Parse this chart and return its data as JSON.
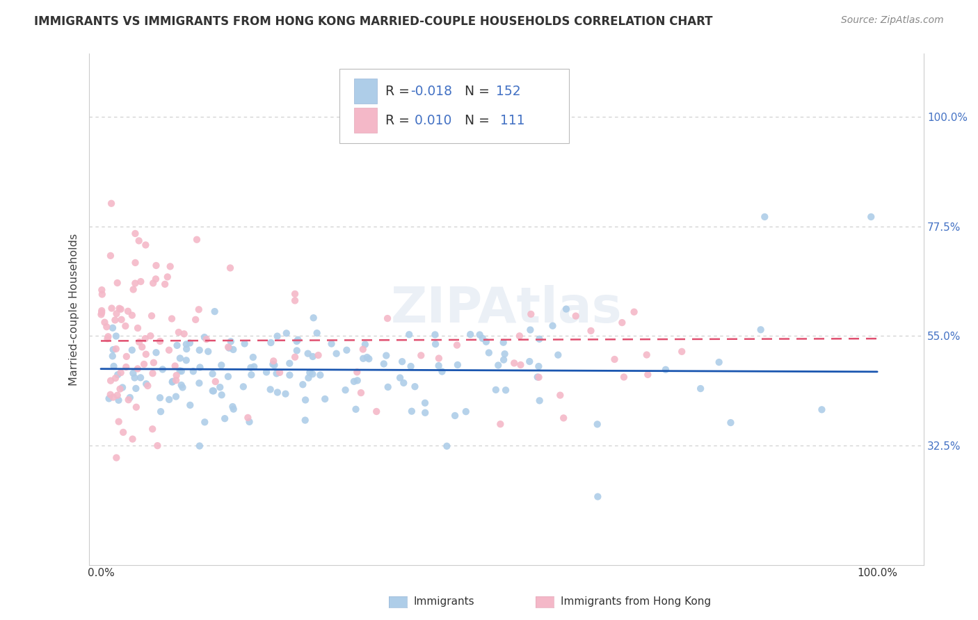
{
  "title": "IMMIGRANTS VS IMMIGRANTS FROM HONG KONG MARRIED-COUPLE HOUSEHOLDS CORRELATION CHART",
  "source": "Source: ZipAtlas.com",
  "ylabel": "Married-couple Households",
  "yticks_labels": [
    "100.0%",
    "77.5%",
    "55.0%",
    "32.5%"
  ],
  "ytick_vals": [
    1.0,
    0.775,
    0.55,
    0.325
  ],
  "legend1_label": "Immigrants",
  "legend2_label": "Immigrants from Hong Kong",
  "legend1_color": "#aecde8",
  "legend2_color": "#f4b8c8",
  "line1_color": "#1a56b0",
  "line2_color": "#e05070",
  "R1": "-0.018",
  "N1": "152",
  "R2": "0.010",
  "N2": "111",
  "R_color": "#4472c4",
  "N_color": "#4472c4",
  "background_color": "#ffffff",
  "watermark": "ZIPAtlas",
  "title_color": "#333333",
  "source_color": "#888888",
  "ylabel_color": "#444444",
  "grid_color": "#cccccc",
  "ytick_color": "#4472c4",
  "xtick_color": "#333333",
  "spine_color": "#cccccc"
}
